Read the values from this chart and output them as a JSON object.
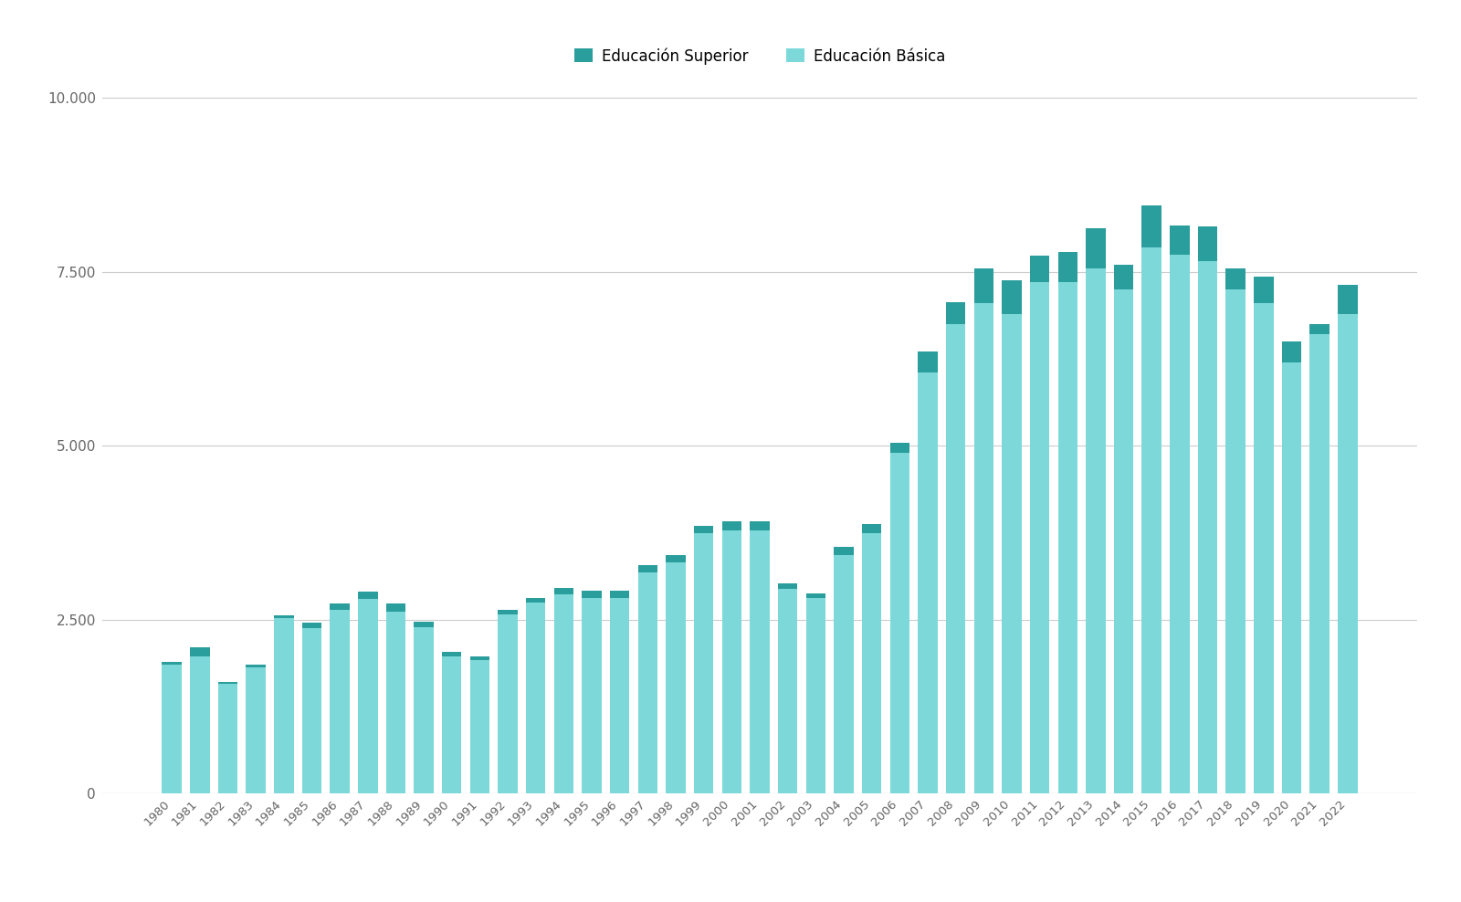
{
  "years": [
    1980,
    1981,
    1982,
    1983,
    1984,
    1985,
    1986,
    1987,
    1988,
    1989,
    1990,
    1991,
    1992,
    1993,
    1994,
    1995,
    1996,
    1997,
    1998,
    1999,
    2000,
    2001,
    2002,
    2003,
    2004,
    2005,
    2006,
    2007,
    2008,
    2009,
    2010,
    2011,
    2012,
    2013,
    2014,
    2015,
    2016,
    2017,
    2018,
    2019,
    2020,
    2021,
    2022
  ],
  "basica": [
    1850,
    1980,
    1580,
    1820,
    2520,
    2380,
    2640,
    2800,
    2620,
    2400,
    1980,
    1920,
    2580,
    2750,
    2870,
    2820,
    2820,
    3180,
    3330,
    3750,
    3780,
    3780,
    2950,
    2820,
    3430,
    3750,
    4900,
    6050,
    6750,
    7050,
    6900,
    7350,
    7350,
    7550,
    7250,
    7850,
    7750,
    7650,
    7250,
    7050,
    6200,
    6600,
    6900
  ],
  "superior": [
    50,
    130,
    20,
    30,
    50,
    80,
    100,
    100,
    110,
    70,
    60,
    50,
    60,
    70,
    90,
    100,
    100,
    100,
    100,
    100,
    130,
    130,
    80,
    60,
    120,
    120,
    150,
    300,
    320,
    500,
    480,
    380,
    430,
    580,
    350,
    600,
    420,
    500,
    300,
    380,
    300,
    150,
    420
  ],
  "color_basica": "#7DD9D9",
  "color_superior": "#2A9D9D",
  "background_color": "#FFFFFF",
  "legend_labels": [
    "Educación Superior",
    "Educación Básica"
  ],
  "yticks": [
    0,
    2500,
    5000,
    7500,
    10000
  ],
  "ylim": [
    0,
    10500
  ],
  "bar_width": 0.7
}
